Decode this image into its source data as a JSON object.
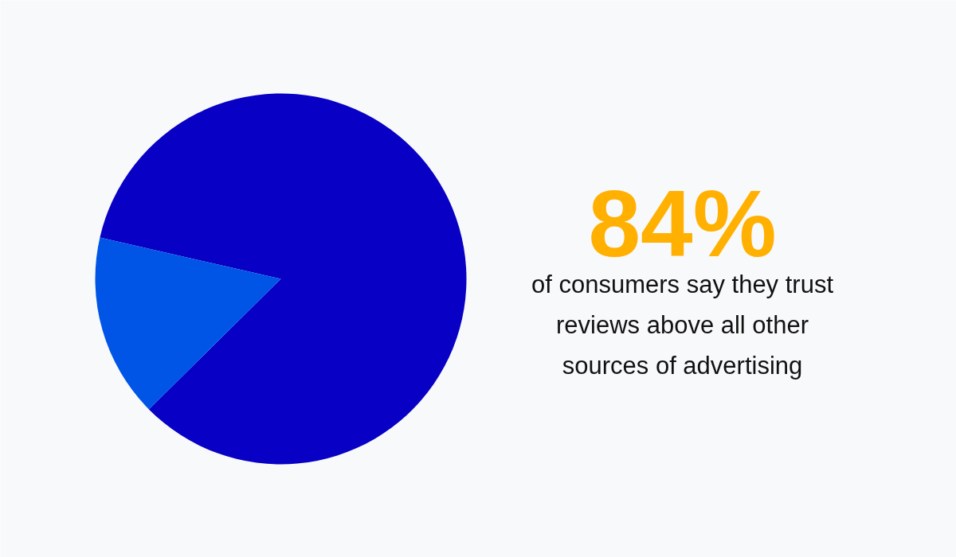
{
  "chart_data": {
    "type": "pie",
    "categories": [
      null,
      null
    ],
    "values": [
      84,
      16
    ],
    "colors": [
      "#0800c4",
      "#0055e6"
    ],
    "annotations": [
      "84%",
      "of consumers say they trust reviews above all other sources of advertising"
    ]
  }
}
